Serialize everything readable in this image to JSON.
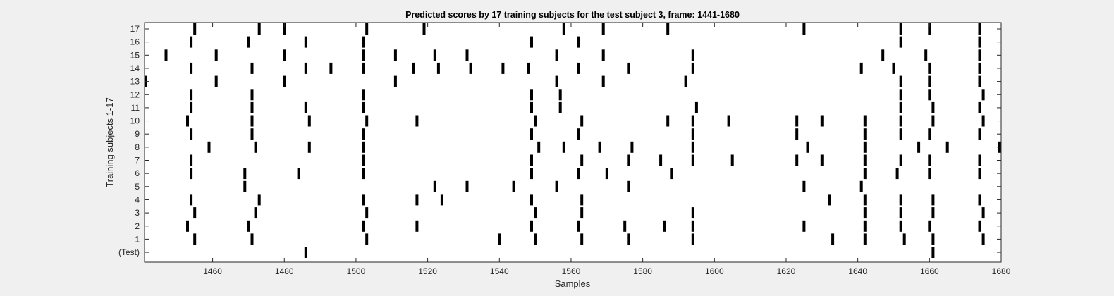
{
  "chart_data": {
    "type": "scatter",
    "title": "Predicted scores by 17 training subjects for the test subject 3, frame: 1441-1680",
    "xlabel": "Samples",
    "ylabel": "Training subjects 1-17",
    "xlim": [
      1441,
      1680
    ],
    "x_ticks": [
      "1460",
      "1480",
      "1500",
      "1520",
      "1540",
      "1560",
      "1580",
      "1600",
      "1620",
      "1640",
      "1660",
      "1680"
    ],
    "x_tick_values": [
      1460,
      1480,
      1500,
      1520,
      1540,
      1560,
      1580,
      1600,
      1620,
      1640,
      1660,
      1680
    ],
    "y_ticks": [
      "(Test)",
      "1",
      "2",
      "3",
      "4",
      "5",
      "6",
      "7",
      "8",
      "9",
      "10",
      "11",
      "12",
      "13",
      "14",
      "15",
      "16",
      "17"
    ],
    "marker": "vertical tick",
    "marker_color": "#000000",
    "background_color": "#ffffff",
    "figure_color": "#f0f0f0",
    "grid": false,
    "rows": [
      {
        "label": "(Test)",
        "x": [
          1486,
          1661
        ]
      },
      {
        "label": "1",
        "x": [
          1455,
          1471,
          1503,
          1540,
          1550,
          1563,
          1576,
          1594,
          1633,
          1642,
          1653,
          1661,
          1675
        ]
      },
      {
        "label": "2",
        "x": [
          1453,
          1470,
          1502,
          1517,
          1549,
          1562,
          1575,
          1586,
          1594,
          1625,
          1642,
          1652,
          1660,
          1674
        ]
      },
      {
        "label": "3",
        "x": [
          1455,
          1472,
          1503,
          1550,
          1563,
          1594,
          1642,
          1652,
          1661,
          1675
        ]
      },
      {
        "label": "4",
        "x": [
          1454,
          1473,
          1502,
          1517,
          1524,
          1549,
          1563,
          1632,
          1642,
          1652,
          1661,
          1674
        ]
      },
      {
        "label": "5",
        "x": [
          1469,
          1522,
          1531,
          1544,
          1556,
          1576,
          1625,
          1641
        ]
      },
      {
        "label": "6",
        "x": [
          1454,
          1469,
          1484,
          1502,
          1549,
          1562,
          1570,
          1588,
          1642,
          1651,
          1660,
          1674
        ]
      },
      {
        "label": "7",
        "x": [
          1454,
          1502,
          1549,
          1563,
          1576,
          1585,
          1594,
          1605,
          1623,
          1630,
          1642,
          1652,
          1660,
          1674
        ]
      },
      {
        "label": "8",
        "x": [
          1459,
          1472,
          1487,
          1502,
          1551,
          1558,
          1568,
          1577,
          1594,
          1626,
          1642,
          1657,
          1665,
          1680
        ]
      },
      {
        "label": "9",
        "x": [
          1454,
          1471,
          1502,
          1549,
          1562,
          1594,
          1623,
          1642,
          1652,
          1660,
          1674
        ]
      },
      {
        "label": "10",
        "x": [
          1453,
          1471,
          1487,
          1503,
          1517,
          1550,
          1563,
          1587,
          1594,
          1604,
          1623,
          1630,
          1642,
          1652,
          1661,
          1675
        ]
      },
      {
        "label": "11",
        "x": [
          1454,
          1471,
          1486,
          1502,
          1549,
          1557,
          1595,
          1652,
          1661,
          1674
        ]
      },
      {
        "label": "12",
        "x": [
          1454,
          1471,
          1502,
          1549,
          1557,
          1652,
          1660,
          1675
        ]
      },
      {
        "label": "13",
        "x": [
          1441,
          1461,
          1480,
          1511,
          1556,
          1569,
          1592,
          1652,
          1660,
          1674
        ]
      },
      {
        "label": "14",
        "x": [
          1454,
          1471,
          1486,
          1493,
          1502,
          1516,
          1523,
          1532,
          1541,
          1548,
          1562,
          1576,
          1594,
          1641,
          1650,
          1660,
          1674
        ]
      },
      {
        "label": "15",
        "x": [
          1447,
          1461,
          1480,
          1502,
          1511,
          1522,
          1531,
          1556,
          1569,
          1594,
          1647,
          1659,
          1674
        ]
      },
      {
        "label": "16",
        "x": [
          1454,
          1470,
          1486,
          1502,
          1549,
          1562,
          1652,
          1674
        ]
      },
      {
        "label": "17",
        "x": [
          1455,
          1473,
          1480,
          1503,
          1519,
          1558,
          1569,
          1587,
          1625,
          1652,
          1660,
          1674
        ]
      }
    ]
  }
}
